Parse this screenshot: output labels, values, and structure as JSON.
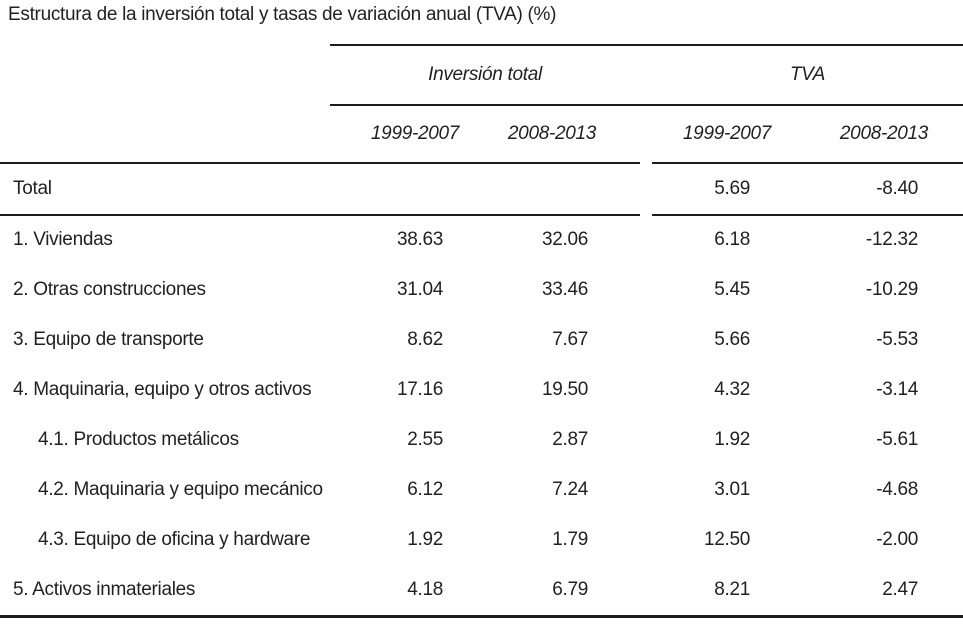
{
  "title": "Estructura de la inversión total y tasas de variación anual (TVA) (%)",
  "colors": {
    "text": "#231f20",
    "rule": "#1f1c1d",
    "background": "#ffffff"
  },
  "table": {
    "groups": [
      {
        "label": "Inversión total"
      },
      {
        "label": "TVA"
      }
    ],
    "col_headers": [
      "1999-2007",
      "2008-2013",
      "1999-2007",
      "2008-2013"
    ],
    "rows": [
      {
        "label": "Total",
        "cells": [
          "",
          "",
          "5.69",
          "-8.40"
        ]
      },
      {
        "label": "1. Viviendas",
        "cells": [
          "38.63",
          "32.06",
          "6.18",
          "-12.32"
        ]
      },
      {
        "label": "2. Otras construcciones",
        "cells": [
          "31.04",
          "33.46",
          "5.45",
          "-10.29"
        ]
      },
      {
        "label": "3. Equipo de transporte",
        "cells": [
          "8.62",
          "7.67",
          "5.66",
          "-5.53"
        ]
      },
      {
        "label": "4. Maquinaria, equipo y otros activos",
        "cells": [
          "17.16",
          "19.50",
          "4.32",
          "-3.14"
        ]
      },
      {
        "label": "4.1. Productos metálicos",
        "cells": [
          "2.55",
          "2.87",
          "1.92",
          "-5.61"
        ]
      },
      {
        "label": "4.2. Maquinaria y equipo mecánico",
        "cells": [
          "6.12",
          "7.24",
          "3.01",
          "-4.68"
        ]
      },
      {
        "label": "4.3. Equipo de oficina y hardware",
        "cells": [
          "1.92",
          "1.79",
          "12.50",
          "-2.00"
        ]
      },
      {
        "label": "5. Activos inmateriales",
        "cells": [
          "4.18",
          "6.79",
          "8.21",
          "2.47"
        ]
      }
    ]
  },
  "chart_data": {
    "type": "table",
    "title": "Estructura de la inversión total y tasas de variación anual (TVA) (%)",
    "column_groups": [
      "Inversión total",
      "TVA"
    ],
    "columns": [
      "Inversión total 1999-2007",
      "Inversión total 2008-2013",
      "TVA 1999-2007",
      "TVA 2008-2013"
    ],
    "row_labels": [
      "Total",
      "1. Viviendas",
      "2. Otras construcciones",
      "3. Equipo de transporte",
      "4. Maquinaria, equipo y otros activos",
      "4.1. Productos metálicos",
      "4.2. Maquinaria y equipo mecánico",
      "4.3. Equipo de oficina y hardware",
      "5. Activos inmateriales"
    ],
    "values": [
      [
        null,
        null,
        5.69,
        -8.4
      ],
      [
        38.63,
        32.06,
        6.18,
        -12.32
      ],
      [
        31.04,
        33.46,
        5.45,
        -10.29
      ],
      [
        8.62,
        7.67,
        5.66,
        -5.53
      ],
      [
        17.16,
        19.5,
        4.32,
        -3.14
      ],
      [
        2.55,
        2.87,
        1.92,
        -5.61
      ],
      [
        6.12,
        7.24,
        3.01,
        -4.68
      ],
      [
        1.92,
        1.79,
        12.5,
        -2.0
      ],
      [
        4.18,
        6.79,
        8.21,
        2.47
      ]
    ]
  }
}
